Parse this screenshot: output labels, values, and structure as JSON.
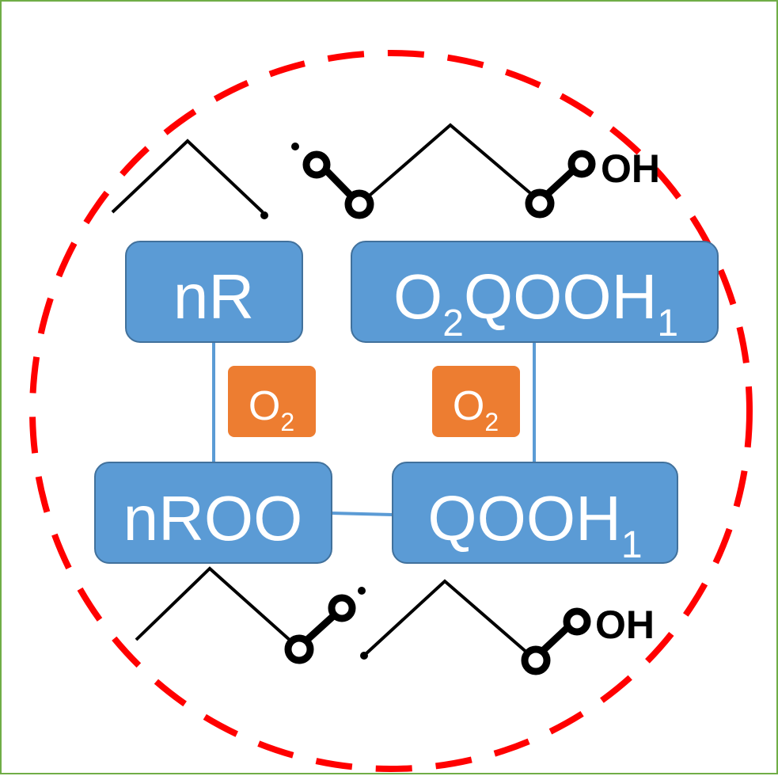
{
  "colors": {
    "border": "#70ad47",
    "dashed_circle": "#ff0000",
    "species_box": "#5b9bd5",
    "species_box_stroke": "#41719c",
    "oxygen_box": "#ed7d31",
    "connector": "#5b9bd5",
    "bond": "#000000"
  },
  "species": {
    "nR": {
      "main": "nR"
    },
    "o2qooh1": {
      "main": "O",
      "sub_a": "2",
      "main_b": "QOOH",
      "sub_b": "1"
    },
    "nroo": {
      "main": "nROO"
    },
    "qooh1": {
      "main": "QOOH",
      "sub": "1"
    }
  },
  "reagents": {
    "left": {
      "main": "O",
      "sub": "2"
    },
    "right": {
      "main": "O",
      "sub": "2"
    }
  },
  "structures": {
    "o2qooh1_terminal": "OH",
    "qooh1_terminal": "OH",
    "icons": [
      "radical-dot",
      "oxygen-atom",
      "hydroxyl-group"
    ]
  }
}
